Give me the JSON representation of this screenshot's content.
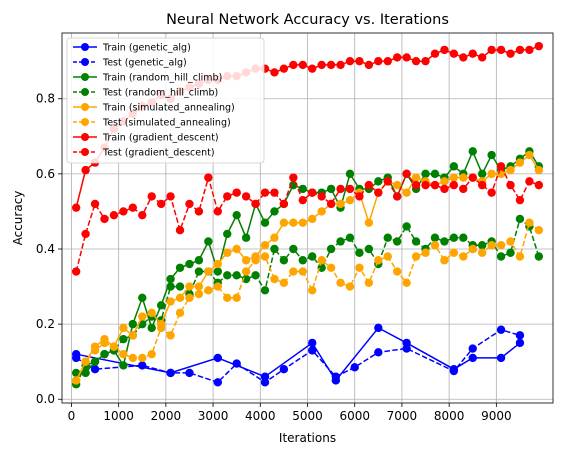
{
  "chart_data": {
    "type": "line",
    "title": "Neural Network Accuracy vs. Iterations",
    "xlabel": "Iterations",
    "ylabel": "Accuracy",
    "xlim": [
      -200,
      10200
    ],
    "ylim": [
      -0.01,
      0.975
    ],
    "xticks": [
      0,
      1000,
      2000,
      3000,
      4000,
      5000,
      6000,
      7000,
      8000,
      9000
    ],
    "xtick_labels": [
      "0",
      "1000",
      "2000",
      "3000",
      "4000",
      "5000",
      "6000",
      "7000",
      "8000",
      "9000"
    ],
    "yticks": [
      0.0,
      0.2,
      0.4,
      0.6,
      0.8
    ],
    "ytick_labels": [
      "0.0",
      "0.2",
      "0.4",
      "0.6",
      "0.8"
    ],
    "grid": true,
    "legend_position": "top-left",
    "series": [
      {
        "name": "Train (genetic_alg)",
        "color": "#0000ff",
        "dash": "solid",
        "x": [
          100,
          2100,
          3100,
          4100,
          5100,
          5600,
          6500,
          7100,
          8100,
          8500,
          9100,
          9500
        ],
        "y": [
          0.12,
          0.07,
          0.11,
          0.06,
          0.15,
          0.05,
          0.19,
          0.15,
          0.08,
          0.11,
          0.11,
          0.15
        ]
      },
      {
        "name": "Test (genetic_alg)",
        "color": "#0000ff",
        "dash": "dashed",
        "x": [
          100,
          500,
          1500,
          2100,
          2500,
          3100,
          3500,
          4100,
          4500,
          5100,
          5600,
          6000,
          6500,
          7100,
          8100,
          8500,
          9100,
          9500
        ],
        "y": [
          0.11,
          0.08,
          0.09,
          0.07,
          0.07,
          0.045,
          0.095,
          0.045,
          0.08,
          0.13,
          0.06,
          0.085,
          0.125,
          0.135,
          0.075,
          0.135,
          0.185,
          0.17
        ]
      },
      {
        "name": "Train (random_hill_climb)",
        "color": "#008000",
        "dash": "solid",
        "x": [
          100,
          300,
          500,
          700,
          900,
          1100,
          1300,
          1500,
          1700,
          1900,
          2100,
          2300,
          2500,
          2700,
          2900,
          3100,
          3300,
          3500,
          3700,
          3900,
          4100,
          4300,
          4500,
          4700,
          4900,
          5100,
          5300,
          5500,
          5700,
          5900,
          6100,
          6300,
          6500,
          6700,
          6900,
          7100,
          7300,
          7500,
          7700,
          7900,
          8100,
          8300,
          8500,
          8700,
          8900,
          9100,
          9300,
          9500,
          9700,
          9900
        ],
        "y": [
          0.07,
          0.07,
          0.1,
          0.12,
          0.13,
          0.09,
          0.2,
          0.27,
          0.19,
          0.25,
          0.32,
          0.35,
          0.36,
          0.37,
          0.42,
          0.34,
          0.44,
          0.49,
          0.43,
          0.52,
          0.47,
          0.5,
          0.52,
          0.57,
          0.56,
          0.55,
          0.55,
          0.56,
          0.51,
          0.6,
          0.56,
          0.56,
          0.58,
          0.59,
          0.54,
          0.6,
          0.56,
          0.6,
          0.6,
          0.59,
          0.62,
          0.6,
          0.66,
          0.6,
          0.65,
          0.61,
          0.62,
          0.64,
          0.66,
          0.62
        ]
      },
      {
        "name": "Test (random_hill_climb)",
        "color": "#008000",
        "dash": "dashed",
        "x": [
          100,
          300,
          500,
          700,
          900,
          1100,
          1300,
          1500,
          1700,
          1900,
          2100,
          2300,
          2500,
          2700,
          2900,
          3100,
          3300,
          3500,
          3700,
          3900,
          4100,
          4300,
          4500,
          4700,
          4900,
          5100,
          5300,
          5500,
          5700,
          5900,
          6100,
          6300,
          6500,
          6700,
          6900,
          7100,
          7300,
          7500,
          7700,
          7900,
          8100,
          8300,
          8500,
          8700,
          8900,
          9100,
          9300,
          9500,
          9700,
          9900
        ],
        "y": [
          0.04,
          0.09,
          0.1,
          0.12,
          0.13,
          0.16,
          0.17,
          0.2,
          0.22,
          0.21,
          0.3,
          0.3,
          0.28,
          0.34,
          0.34,
          0.31,
          0.33,
          0.33,
          0.32,
          0.33,
          0.29,
          0.4,
          0.37,
          0.4,
          0.37,
          0.38,
          0.35,
          0.4,
          0.42,
          0.43,
          0.39,
          0.4,
          0.36,
          0.43,
          0.42,
          0.46,
          0.42,
          0.4,
          0.43,
          0.42,
          0.43,
          0.43,
          0.41,
          0.41,
          0.42,
          0.38,
          0.39,
          0.48,
          0.46,
          0.38
        ]
      },
      {
        "name": "Train (simulated_annealing)",
        "color": "#ffa500",
        "dash": "solid",
        "x": [
          100,
          300,
          500,
          700,
          900,
          1100,
          1300,
          1500,
          1700,
          1900,
          2100,
          2300,
          2500,
          2700,
          2900,
          3100,
          3300,
          3500,
          3700,
          3900,
          4100,
          4300,
          4500,
          4700,
          4900,
          5100,
          5300,
          5500,
          5700,
          5900,
          6100,
          6300,
          6500,
          6700,
          6900,
          7100,
          7300,
          7500,
          7700,
          7900,
          8100,
          8300,
          8500,
          8700,
          8900,
          9100,
          9300,
          9500,
          9700,
          9900
        ],
        "y": [
          0.05,
          0.1,
          0.14,
          0.16,
          0.14,
          0.19,
          0.17,
          0.22,
          0.23,
          0.2,
          0.26,
          0.27,
          0.3,
          0.3,
          0.34,
          0.36,
          0.39,
          0.4,
          0.37,
          0.38,
          0.41,
          0.43,
          0.47,
          0.47,
          0.47,
          0.48,
          0.5,
          0.52,
          0.52,
          0.53,
          0.55,
          0.47,
          0.55,
          0.58,
          0.57,
          0.55,
          0.59,
          0.58,
          0.57,
          0.58,
          0.59,
          0.59,
          0.59,
          0.58,
          0.6,
          0.6,
          0.61,
          0.63,
          0.65,
          0.61
        ]
      },
      {
        "name": "Test (simulated_annealing)",
        "color": "#ffa500",
        "dash": "dashed",
        "x": [
          100,
          300,
          500,
          700,
          900,
          1100,
          1300,
          1500,
          1700,
          1900,
          2100,
          2300,
          2500,
          2700,
          2900,
          3100,
          3300,
          3500,
          3700,
          3900,
          4100,
          4300,
          4500,
          4700,
          4900,
          5100,
          5300,
          5500,
          5700,
          5900,
          6100,
          6300,
          6500,
          6700,
          6900,
          7100,
          7300,
          7500,
          7700,
          7900,
          8100,
          8300,
          8500,
          8700,
          8900,
          9100,
          9300,
          9500,
          9700,
          9900
        ],
        "y": [
          0.05,
          0.1,
          0.13,
          0.15,
          0.14,
          0.12,
          0.11,
          0.11,
          0.12,
          0.19,
          0.17,
          0.23,
          0.27,
          0.28,
          0.29,
          0.3,
          0.27,
          0.27,
          0.34,
          0.37,
          0.38,
          0.32,
          0.31,
          0.34,
          0.34,
          0.29,
          0.37,
          0.35,
          0.31,
          0.3,
          0.35,
          0.31,
          0.37,
          0.38,
          0.34,
          0.31,
          0.38,
          0.39,
          0.41,
          0.37,
          0.39,
          0.38,
          0.4,
          0.39,
          0.41,
          0.41,
          0.42,
          0.38,
          0.47,
          0.45
        ]
      },
      {
        "name": "Train (gradient_descent)",
        "color": "#ff0000",
        "dash": "solid",
        "x": [
          100,
          300,
          500,
          700,
          900,
          1100,
          1300,
          1500,
          1700,
          1900,
          2100,
          2300,
          2500,
          2700,
          2900,
          3100,
          3300,
          3500,
          3700,
          3900,
          4100,
          4300,
          4500,
          4700,
          4900,
          5100,
          5300,
          5500,
          5700,
          5900,
          6100,
          6300,
          6500,
          6700,
          6900,
          7100,
          7300,
          7500,
          7700,
          7900,
          8100,
          8300,
          8500,
          8700,
          8900,
          9100,
          9300,
          9500,
          9700,
          9900
        ],
        "y": [
          0.51,
          0.61,
          0.63,
          0.67,
          0.72,
          0.74,
          0.76,
          0.78,
          0.79,
          0.81,
          0.8,
          0.82,
          0.83,
          0.84,
          0.85,
          0.85,
          0.86,
          0.86,
          0.87,
          0.88,
          0.88,
          0.87,
          0.88,
          0.89,
          0.89,
          0.88,
          0.89,
          0.89,
          0.89,
          0.9,
          0.9,
          0.89,
          0.9,
          0.9,
          0.91,
          0.91,
          0.9,
          0.9,
          0.92,
          0.93,
          0.92,
          0.91,
          0.92,
          0.91,
          0.93,
          0.93,
          0.92,
          0.93,
          0.93,
          0.94
        ]
      },
      {
        "name": "Test (gradient_descent)",
        "color": "#ff0000",
        "dash": "dashed",
        "x": [
          100,
          300,
          500,
          700,
          900,
          1100,
          1300,
          1500,
          1700,
          1900,
          2100,
          2300,
          2500,
          2700,
          2900,
          3100,
          3300,
          3500,
          3700,
          3900,
          4100,
          4300,
          4500,
          4700,
          4900,
          5100,
          5300,
          5500,
          5700,
          5900,
          6100,
          6300,
          6500,
          6700,
          6900,
          7100,
          7300,
          7500,
          7700,
          7900,
          8100,
          8300,
          8500,
          8700,
          8900,
          9100,
          9300,
          9500,
          9700,
          9900
        ],
        "y": [
          0.34,
          0.44,
          0.52,
          0.48,
          0.49,
          0.5,
          0.51,
          0.49,
          0.54,
          0.52,
          0.54,
          0.45,
          0.52,
          0.5,
          0.59,
          0.5,
          0.54,
          0.55,
          0.54,
          0.52,
          0.55,
          0.55,
          0.52,
          0.59,
          0.53,
          0.55,
          0.54,
          0.52,
          0.56,
          0.56,
          0.54,
          0.57,
          0.55,
          0.58,
          0.54,
          0.6,
          0.57,
          0.57,
          0.57,
          0.56,
          0.57,
          0.56,
          0.59,
          0.57,
          0.55,
          0.62,
          0.57,
          0.53,
          0.58,
          0.57
        ]
      }
    ]
  }
}
